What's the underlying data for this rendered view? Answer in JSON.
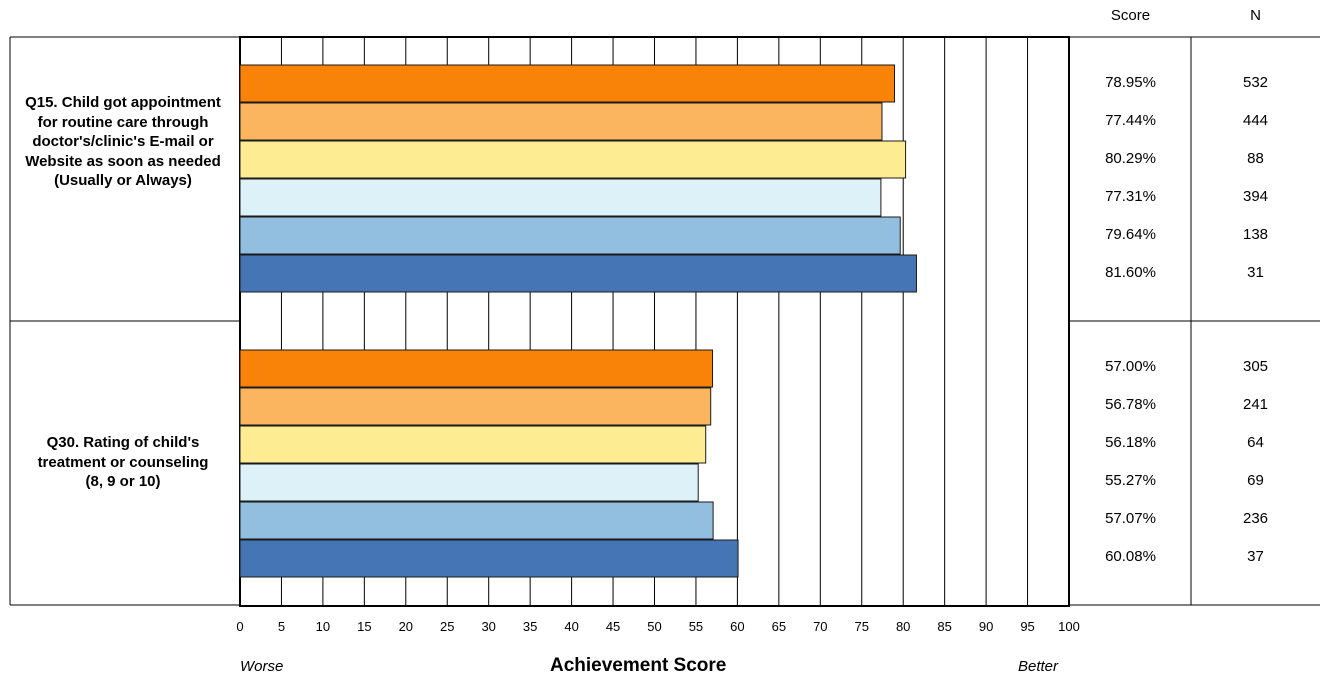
{
  "table_headers": {
    "score": "Score",
    "n": "N"
  },
  "footer": {
    "worse": "Worse",
    "title": "Achievement Score",
    "better": "Better"
  },
  "colors": [
    "#f98208",
    "#fbb55e",
    "#fdec92",
    "#ddf1f8",
    "#92bfe0",
    "#4675b6"
  ],
  "chart_data": {
    "type": "bar",
    "orientation": "horizontal",
    "xlabel": "Achievement Score",
    "xlim": [
      0,
      100
    ],
    "x_ticks": [
      "0",
      "5",
      "10",
      "15",
      "20",
      "25",
      "30",
      "35",
      "40",
      "45",
      "50",
      "55",
      "60",
      "65",
      "70",
      "75",
      "80",
      "85",
      "90",
      "95",
      "100"
    ],
    "grid": true,
    "categories": [
      "Q15. Child got appointment for routine care through doctor's/clinic's E-mail or Website as soon as needed (Usually or Always)",
      "Q30. Rating of child's treatment or counseling (8, 9 or 10)"
    ],
    "groups": [
      {
        "values": [
          78.95,
          77.44,
          80.29,
          77.31,
          79.64,
          81.6
        ],
        "score_labels": [
          "78.95%",
          "77.44%",
          "80.29%",
          "77.31%",
          "79.64%",
          "81.60%"
        ],
        "n_labels": [
          "532",
          "444",
          "88",
          "394",
          "138",
          "31"
        ]
      },
      {
        "values": [
          57.0,
          56.78,
          56.18,
          55.27,
          57.07,
          60.08
        ],
        "score_labels": [
          "57.00%",
          "56.78%",
          "56.18%",
          "55.27%",
          "57.07%",
          "60.08%"
        ],
        "n_labels": [
          "305",
          "241",
          "64",
          "69",
          "236",
          "37"
        ]
      }
    ]
  }
}
